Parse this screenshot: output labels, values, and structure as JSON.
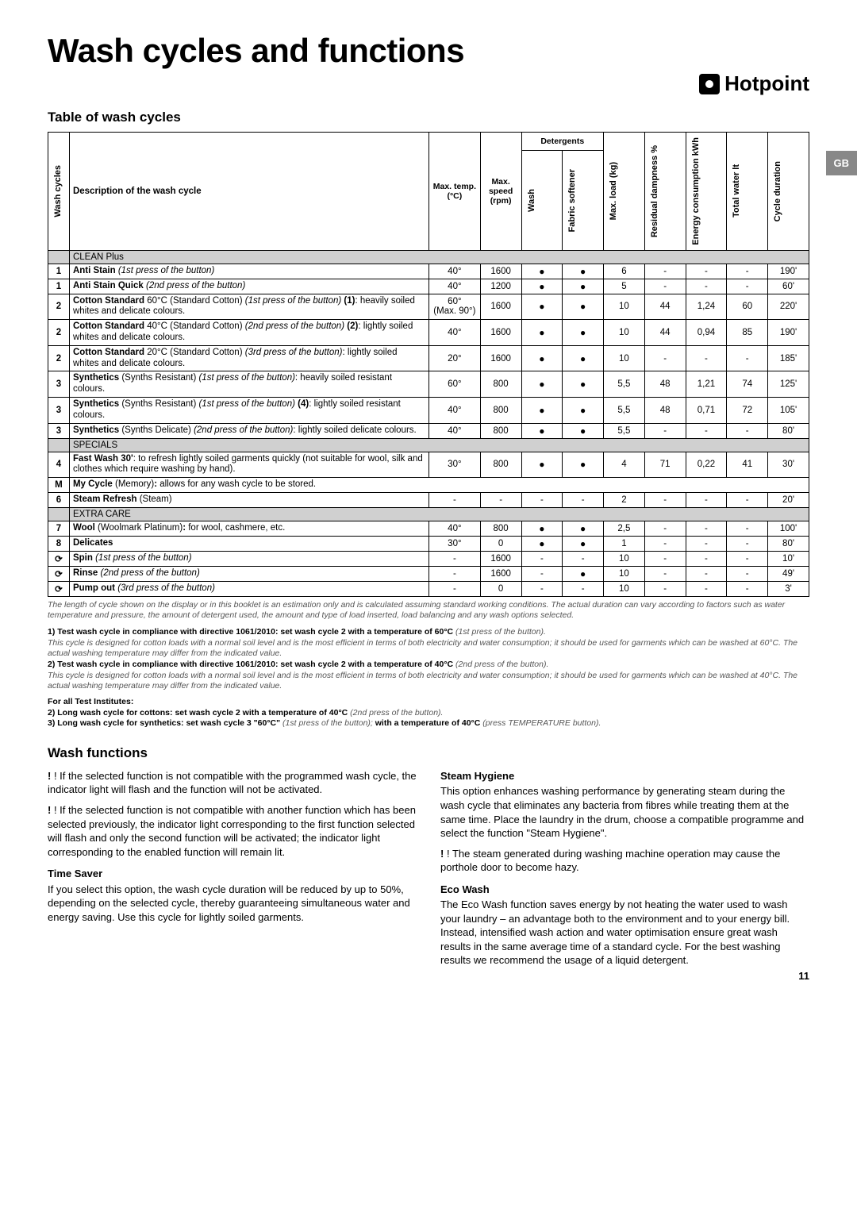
{
  "page": {
    "title": "Wash cycles and functions",
    "brand": "Hotpoint",
    "locale_tab": "GB",
    "table_title": "Table of wash cycles",
    "functions_title": "Wash functions",
    "page_number": "11"
  },
  "headers": {
    "wash_cycles": "Wash cycles",
    "description": "Description of the wash cycle",
    "max_temp": "Max. temp. (°C)",
    "max_speed": "Max. speed (rpm)",
    "detergents": "Detergents",
    "wash": "Wash",
    "fabric_softener": "Fabric softener",
    "max_load": "Max. load (kg)",
    "residual_damp": "Residual dampness %",
    "energy": "Energy consumption kWh",
    "total_water": "Total water lt",
    "cycle_duration": "Cycle duration"
  },
  "sections": {
    "clean_plus": "CLEAN Plus",
    "specials": "SPECIALS",
    "extra_care": "EXTRA CARE"
  },
  "rows": [
    {
      "n": "1",
      "desc": "<b>Anti Stain</b> <i>(1st press of the button)</i>",
      "temp": "40°",
      "rpm": "1600",
      "wash": true,
      "soft": true,
      "load": "6",
      "damp": "-",
      "kwh": "-",
      "water": "-",
      "dur": "190'"
    },
    {
      "n": "1",
      "desc": "<b>Anti Stain Quick</b> <i>(2nd press of the button)</i>",
      "temp": "40°",
      "rpm": "1200",
      "wash": true,
      "soft": true,
      "load": "5",
      "damp": "-",
      "kwh": "-",
      "water": "-",
      "dur": "60'"
    },
    {
      "n": "2",
      "desc": "<b>Cotton Standard</b> 60°C (Standard Cotton) <i>(1st press of the button)</i> <b>(1)</b>: heavily soiled whites and delicate colours.",
      "temp": "60°<br>(Max. 90°)",
      "rpm": "1600",
      "wash": true,
      "soft": true,
      "load": "10",
      "damp": "44",
      "kwh": "1,24",
      "water": "60",
      "dur": "220'"
    },
    {
      "n": "2",
      "desc": "<b>Cotton Standard</b> 40°C (Standard Cotton) <i>(2nd press of the button)</i> <b>(2)</b>: lightly soiled whites and delicate colours.",
      "temp": "40°",
      "rpm": "1600",
      "wash": true,
      "soft": true,
      "load": "10",
      "damp": "44",
      "kwh": "0,94",
      "water": "85",
      "dur": "190'"
    },
    {
      "n": "2",
      "desc": "<b>Cotton Standard</b> 20°C (Standard Cotton) <i>(3rd press of the button)</i>: lightly soiled whites and delicate colours.",
      "temp": "20°",
      "rpm": "1600",
      "wash": true,
      "soft": true,
      "load": "10",
      "damp": "-",
      "kwh": "-",
      "water": "-",
      "dur": "185'"
    },
    {
      "n": "3",
      "desc": "<b>Synthetics</b> (Synths Resistant) <i>(1st press of the button)</i>: heavily soiled resistant colours.",
      "temp": "60°",
      "rpm": "800",
      "wash": true,
      "soft": true,
      "load": "5,5",
      "damp": "48",
      "kwh": "1,21",
      "water": "74",
      "dur": "125'"
    },
    {
      "n": "3",
      "desc": "<b>Synthetics</b> (Synths Resistant) <i>(1st press of the button)</i> <b>(4)</b>: lightly soiled resistant colours.",
      "temp": "40°",
      "rpm": "800",
      "wash": true,
      "soft": true,
      "load": "5,5",
      "damp": "48",
      "kwh": "0,71",
      "water": "72",
      "dur": "105'"
    },
    {
      "n": "3",
      "desc": "<b>Synthetics</b> (Synths Delicate) <i>(2nd press of the button)</i>: lightly soiled delicate colours.",
      "temp": "40°",
      "rpm": "800",
      "wash": true,
      "soft": true,
      "load": "5,5",
      "damp": "-",
      "kwh": "-",
      "water": "-",
      "dur": "80'"
    }
  ],
  "specials_rows": [
    {
      "n": "4",
      "desc": "<b>Fast Wash 30'</b>: to refresh lightly soiled garments quickly (not suitable for wool, silk and clothes which require washing by hand).",
      "temp": "30°",
      "rpm": "800",
      "wash": true,
      "soft": true,
      "load": "4",
      "damp": "71",
      "kwh": "0,22",
      "water": "41",
      "dur": "30'"
    },
    {
      "n": "M",
      "desc": "<b>My Cycle</b> (Memory)<b>:</b> allows for any wash cycle to be stored.",
      "colspan": true
    },
    {
      "n": "6",
      "desc": "<b>Steam Refresh</b> (Steam)",
      "temp": "-",
      "rpm": "-",
      "wash": false,
      "soft": false,
      "load": "2",
      "damp": "-",
      "kwh": "-",
      "water": "-",
      "dur": "20'",
      "wd": "-",
      "sd": "-"
    }
  ],
  "extra_rows": [
    {
      "n": "7",
      "desc": "<b>Wool</b> (Woolmark Platinum)<b>:</b> for wool, cashmere, etc.",
      "temp": "40°",
      "rpm": "800",
      "wash": true,
      "soft": true,
      "load": "2,5",
      "damp": "-",
      "kwh": "-",
      "water": "-",
      "dur": "100'"
    },
    {
      "n": "8",
      "desc": "<b>Delicates</b>",
      "temp": "30°",
      "rpm": "0",
      "wash": true,
      "soft": true,
      "load": "1",
      "damp": "-",
      "kwh": "-",
      "water": "-",
      "dur": "80'"
    },
    {
      "n": "⟳",
      "desc": "<b>Spin</b> <i>(1st press of the button)</i>",
      "temp": "-",
      "rpm": "1600",
      "wash": false,
      "soft": false,
      "load": "10",
      "damp": "-",
      "kwh": "-",
      "water": "-",
      "dur": "10'",
      "wd": "-",
      "sd": "-"
    },
    {
      "n": "⟳",
      "desc": "<b>Rinse</b> <i>(2nd press of the button)</i>",
      "temp": "-",
      "rpm": "1600",
      "wash": false,
      "soft": true,
      "load": "10",
      "damp": "-",
      "kwh": "-",
      "water": "-",
      "dur": "49'",
      "wd": "-"
    },
    {
      "n": "⟳",
      "desc": "<b>Pump out</b> <i>(3rd press of the button)</i>",
      "temp": "-",
      "rpm": "0",
      "wash": false,
      "soft": false,
      "load": "10",
      "damp": "-",
      "kwh": "-",
      "water": "-",
      "dur": "3'",
      "wd": "-",
      "sd": "-"
    }
  ],
  "footnote": "The length of cycle shown on the display or in this booklet is an estimation only and is calculated assuming standard working conditions. The actual duration can vary according to factors such as water temperature and pressure, the amount of detergent used, the amount and type of load inserted, load balancing and any wash options selected.",
  "notes": {
    "n1b": "1) Test wash cycle in compliance with directive 1061/2010: set wash cycle 2 with a temperature of 60°C",
    "n1i": " (1st press of the button).",
    "n1body": "This cycle is designed for cotton loads with a normal soil level and is the most efficient in terms of both electricity and water consumption; it should be used for garments which can be washed at 60°C. The actual washing temperature may differ from the indicated value.",
    "n2b": "2) Test wash cycle in compliance with directive 1061/2010: set wash cycle 2 with a temperature of 40°C",
    "n2i": " (2nd press of the button).",
    "n2body": "This cycle is designed for cotton loads with a normal soil level and is the most efficient in terms of both electricity and water consumption; it should be used for garments which can be washed at 40°C. The actual washing temperature may differ from the indicated value.",
    "inst": "For all Test Institutes:",
    "n2c": "2) Long wash cycle for cottons: set wash cycle 2 with a temperature of 40°C",
    "n2ci": " (2nd press of the button).",
    "n3": "3) Long wash cycle for synthetics: set wash cycle 3 \"60°C\"",
    "n3i": " (1st press of the button);",
    "n3b": " with a temperature of 40°C",
    "n3bi": " (press TEMPERATURE button)."
  },
  "functions": {
    "left": {
      "warn1": "! If the selected function is not compatible with the programmed wash cycle, the indicator light will flash and the function will not be activated.",
      "warn2": "! If the selected function is not compatible with another function which has been selected previously, the indicator light corresponding to the first function selected will flash and only the second function will be activated; the indicator light corresponding to the enabled function will remain lit.",
      "time_saver_h": "Time Saver",
      "time_saver": "If you select this option, the wash cycle duration will be reduced by up to 50%, depending on the selected cycle, thereby guaranteeing simultaneous water and energy saving. Use this cycle for lightly soiled garments."
    },
    "right": {
      "steam_h": "Steam Hygiene",
      "steam": "This option enhances washing performance by generating steam during the wash cycle that eliminates any bacteria from fibres while treating them at the same time. Place the laundry in the drum, choose a compatible programme and select the function \"Steam Hygiene\".",
      "steam_warn": "! The steam generated during washing machine operation may cause the porthole door to become hazy.",
      "eco_h": "Eco Wash",
      "eco": "The Eco Wash function saves energy by not heating the water used to wash your laundry – an advantage both to the environment and to your energy bill. Instead, intensified wash action and water optimisation ensure great wash results in the same average time of a standard cycle. For the best washing results we recommend the usage of a liquid detergent."
    }
  }
}
